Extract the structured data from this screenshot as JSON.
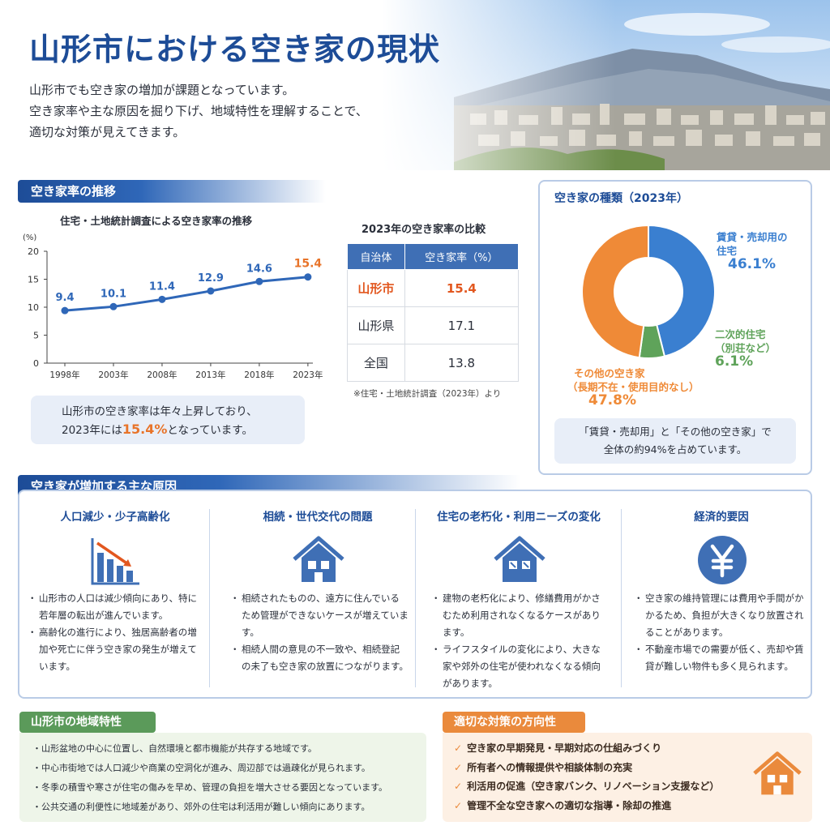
{
  "hero": {
    "title": "山形市における空き家の現状",
    "lead": [
      "山形市でも空き家の増加が課題となっています。",
      "空き家率や主な原因を掘り下げ、地域特性を理解することで、",
      "適切な対策が見えてきます。"
    ]
  },
  "trend": {
    "section_title": "空き家率の推移",
    "note_prefix": "山形市の空き家率は年々上昇しており、",
    "note_line2_pre": "2023年には",
    "note_highlight": "15.4%",
    "note_line2_post": "となっています。"
  },
  "chart_data": {
    "type": "line",
    "title": "住宅・土地統計調査による空き家率の推移",
    "ylabel": "(%)",
    "xlabel": "",
    "categories": [
      "1998年",
      "2003年",
      "2008年",
      "2013年",
      "2018年",
      "2023年"
    ],
    "values": [
      9.4,
      10.1,
      11.4,
      12.9,
      14.6,
      15.4
    ],
    "data_labels": [
      "9.4",
      "10.1",
      "11.4",
      "12.9",
      "14.6",
      "15.4"
    ],
    "ylim": [
      0,
      20
    ],
    "yticks": [
      0,
      5,
      10,
      15,
      20
    ],
    "ytick_labels": [
      "0",
      "5",
      "10",
      "15",
      "20"
    ],
    "grid": false,
    "colors": {
      "line": "#2f67b8",
      "last_label": "#e8742a",
      "label": "#2f67b8"
    }
  },
  "compare": {
    "title": "2023年の空き家率の比較",
    "headers": [
      "自治体",
      "空き家率（%）"
    ],
    "rows": [
      {
        "name": "山形市",
        "value": "15.4"
      },
      {
        "name": "山形県",
        "value": "17.1"
      },
      {
        "name": "全国",
        "value": "13.8"
      }
    ],
    "source": "※住宅・土地統計調査（2023年）より"
  },
  "types": {
    "title": "空き家の種類（2023年）",
    "slices": [
      {
        "label_lines": [
          "賃貸・売却用の",
          "住宅"
        ],
        "pct": "46.1%",
        "value": 46.1,
        "color": "#3a7fd0"
      },
      {
        "label_lines": [
          "二次的住宅",
          "（別荘など）"
        ],
        "pct": "6.1%",
        "value": 6.1,
        "color": "#5fa35a"
      },
      {
        "label_lines": [
          "その他の空き家",
          "（長期不在・使用目的なし）"
        ],
        "pct": "47.8%",
        "value": 47.8,
        "color": "#ef8a37"
      }
    ],
    "note": [
      "「賃貸・売却用」と「その他の空き家」で",
      "全体の約94%を占めています。"
    ]
  },
  "causes": {
    "section_title": "空き家が増加する主な原因",
    "items": [
      {
        "title": "人口減少・少子高齢化",
        "icon": "declining-chart-icon",
        "bullets": [
          "山形市の人口は減少傾向にあり、特に若年層の転出が進んでいます。",
          "高齢化の進行により、独居高齢者の増加や死亡に伴う空き家の発生が増えています。"
        ]
      },
      {
        "title": "相続・世代交代の問題",
        "icon": "house-icon",
        "bullets": [
          "相続されたものの、遠方に住んでいるため管理ができないケースが増えています。",
          "相続人間の意見の不一致や、相続登記の未了も空き家の放置につながります。"
        ]
      },
      {
        "title": "住宅の老朽化・利用ニーズの変化",
        "icon": "old-house-icon",
        "bullets": [
          "建物の老朽化により、修繕費用がかさむため利用されなくなるケースがあります。",
          "ライフスタイルの変化により、大きな家や郊外の住宅が使われなくなる傾向があります。"
        ]
      },
      {
        "title": "経済的要因",
        "icon": "yen-icon",
        "bullets": [
          "空き家の維持管理には費用や手間がかかるため、負担が大きくなり放置されることがあります。",
          "不動産市場での需要が低く、売却や賃貸が難しい物件も多く見られます。"
        ]
      }
    ]
  },
  "region": {
    "title": "山形市の地域特性",
    "bullets": [
      "山形盆地の中心に位置し、自然環境と都市機能が共存する地域です。",
      "中心市街地では人口減少や商業の空洞化が進み、周辺部では過疎化が見られます。",
      "冬季の積雪や寒さが住宅の傷みを早め、管理の負担を増大させる要因となっています。",
      "公共交通の利便性に地域差があり、郊外の住宅は利活用が難しい傾向にあります。"
    ]
  },
  "measures": {
    "title": "適切な対策の方向性",
    "check": "✓",
    "bullets": [
      "空き家の早期発見・早期対応の仕組みづくり",
      "所有者への情報提供や相談体制の充実",
      "利活用の促進（空き家バンク、リノベーション支援など）",
      "管理不全な空き家への適切な指導・除却の推進"
    ]
  }
}
